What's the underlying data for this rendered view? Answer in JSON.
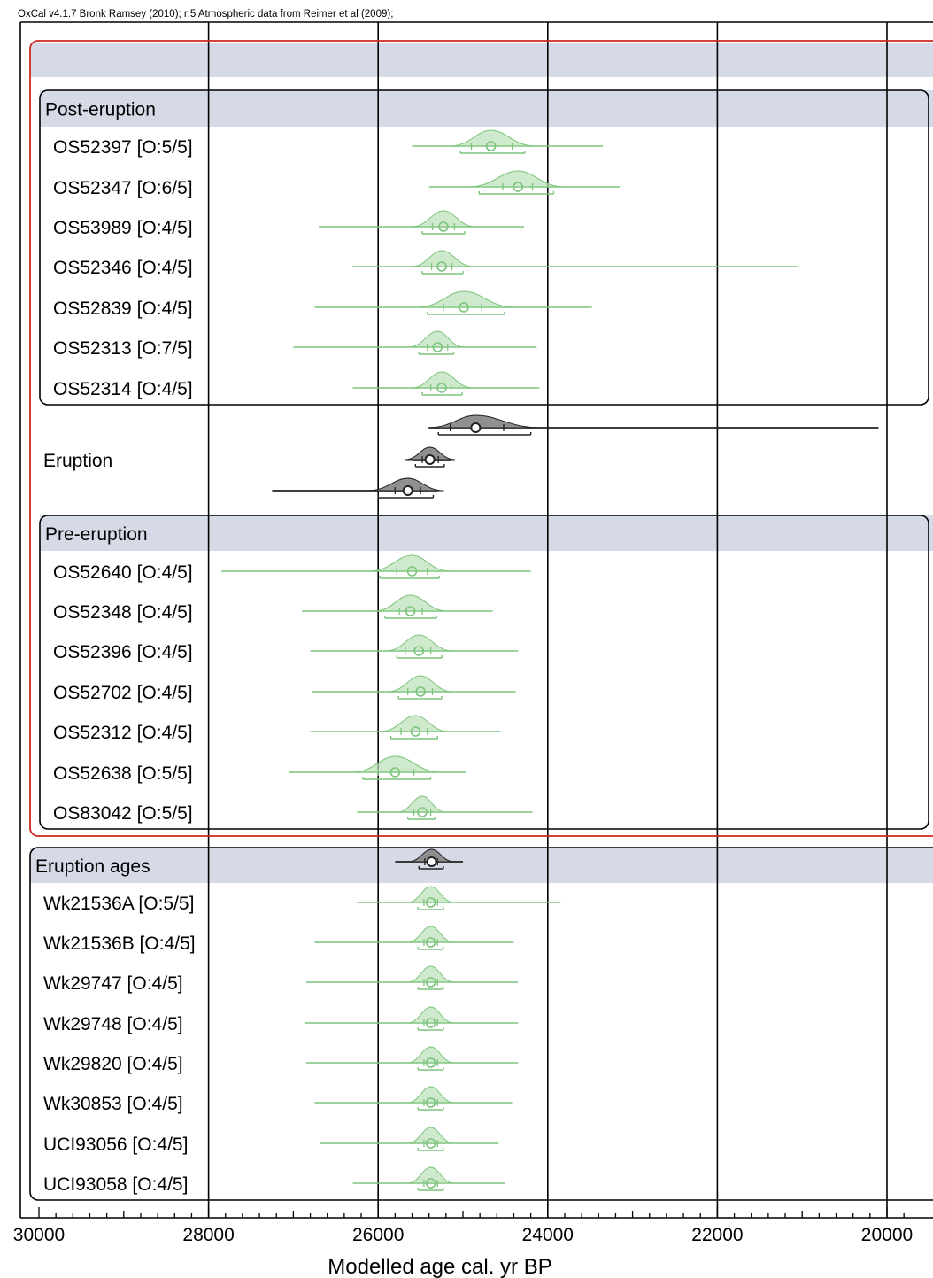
{
  "header": {
    "text": "OxCal v4.1.7 Bronk Ramsey (2010); r:5 Atmospheric data from Reimer et al (2009);"
  },
  "colors": {
    "frame": "#000000",
    "band": "#d6dae7",
    "outer_box": "#d0261f",
    "sample": "#7cc47c",
    "sample_fill": "#b9e0b5",
    "phase_dark": "#222222",
    "phase_fill": "#8a8a8a"
  },
  "chart_data": {
    "type": "scatter",
    "xlabel": "Modelled age cal. yr BP",
    "x_ticks": [
      "30000",
      "28000",
      "26000",
      "24000",
      "22000",
      "20000"
    ],
    "xlim": [
      30000,
      19800
    ],
    "grid": "vertical lines at major ticks",
    "groups": [
      {
        "title": "Post-eruption",
        "items": [
          {
            "label": "OS52397 [O:5/5]",
            "median": 24670,
            "range68": [
              24900,
              24420
            ],
            "range95": [
              25030,
              24270
            ],
            "tails": [
              25600,
              23350
            ]
          },
          {
            "label": "OS52347 [O:6/5]",
            "median": 24350,
            "range68": [
              24530,
              24180
            ],
            "range95": [
              24810,
              23930
            ],
            "tails": [
              25400,
              23150
            ]
          },
          {
            "label": "OS53989 [O:4/5]",
            "median": 25230,
            "range68": [
              25360,
              25100
            ],
            "range95": [
              25480,
              24980
            ],
            "tails": [
              26700,
              24280
            ]
          },
          {
            "label": "OS52346 [O:4/5]",
            "median": 25250,
            "range68": [
              25370,
              25130
            ],
            "range95": [
              25480,
              25000
            ],
            "tails": [
              26300,
              21050
            ]
          },
          {
            "label": "OS52839 [O:4/5]",
            "median": 24990,
            "range68": [
              25230,
              24780
            ],
            "range95": [
              25420,
              24510
            ],
            "tails": [
              26750,
              23480
            ]
          },
          {
            "label": "OS52313 [O:7/5]",
            "median": 25300,
            "range68": [
              25420,
              25180
            ],
            "range95": [
              25520,
              25110
            ],
            "tails": [
              27000,
              24130
            ]
          },
          {
            "label": "OS52314 [O:4/5]",
            "median": 25250,
            "range68": [
              25380,
              25140
            ],
            "range95": [
              25480,
              25010
            ],
            "tails": [
              26300,
              24100
            ]
          }
        ]
      },
      {
        "title": "Eruption",
        "items": [
          {
            "label": "",
            "median": 24850,
            "range68": [
              25150,
              24520
            ],
            "range95": [
              25290,
              24200
            ],
            "tails": [
              25400,
              20100
            ],
            "phase": true
          },
          {
            "label": "",
            "median": 25390,
            "range68": [
              25480,
              25290
            ],
            "range95": [
              25560,
              25220
            ],
            "tails": [
              25600,
              25150
            ],
            "phase": true
          },
          {
            "label": "",
            "median": 25650,
            "range68": [
              25800,
              25500
            ],
            "range95": [
              26000,
              25350
            ],
            "tails": [
              27250,
              25300
            ],
            "phase": true
          }
        ]
      },
      {
        "title": "Pre-eruption",
        "items": [
          {
            "label": "OS52640 [O:4/5]",
            "median": 25600,
            "range68": [
              25780,
              25420
            ],
            "range95": [
              25980,
              25280
            ],
            "tails": [
              27850,
              24200
            ]
          },
          {
            "label": "OS52348 [O:4/5]",
            "median": 25620,
            "range68": [
              25750,
              25480
            ],
            "range95": [
              25920,
              25310
            ],
            "tails": [
              26900,
              24650
            ]
          },
          {
            "label": "OS52396 [O:4/5]",
            "median": 25520,
            "range68": [
              25680,
              25380
            ],
            "range95": [
              25780,
              25250
            ],
            "tails": [
              26800,
              24350
            ]
          },
          {
            "label": "OS52702 [O:4/5]",
            "median": 25500,
            "range68": [
              25650,
              25360
            ],
            "range95": [
              25760,
              25250
            ],
            "tails": [
              26780,
              24380
            ]
          },
          {
            "label": "OS52312 [O:4/5]",
            "median": 25560,
            "range68": [
              25730,
              25420
            ],
            "range95": [
              25850,
              25300
            ],
            "tails": [
              26800,
              24560
            ]
          },
          {
            "label": "OS52638 [O:5/5]",
            "median": 25800,
            "range68": [
              26000,
              25580
            ],
            "range95": [
              26180,
              25380
            ],
            "tails": [
              27050,
              24970
            ]
          },
          {
            "label": "OS83042 [O:5/5]",
            "median": 25480,
            "range68": [
              25580,
              25380
            ],
            "range95": [
              25650,
              25330
            ],
            "tails": [
              26250,
              24180
            ]
          }
        ]
      },
      {
        "title": "Eruption ages",
        "items": [
          {
            "label": "",
            "median": 25370,
            "range68": [
              25450,
              25300
            ],
            "range95": [
              25520,
              25230
            ],
            "tails": [
              25800,
              25000
            ],
            "phase": true
          },
          {
            "label": "Wk21536A [O:5/5]",
            "median": 25380,
            "range68": [
              25460,
              25300
            ],
            "range95": [
              25530,
              25230
            ],
            "tails": [
              26250,
              23850
            ]
          },
          {
            "label": "Wk21536B [O:4/5]",
            "median": 25380,
            "range68": [
              25460,
              25300
            ],
            "range95": [
              25530,
              25230
            ],
            "tails": [
              26750,
              24400
            ]
          },
          {
            "label": "Wk29747 [O:4/5]",
            "median": 25380,
            "range68": [
              25460,
              25300
            ],
            "range95": [
              25530,
              25230
            ],
            "tails": [
              26850,
              24350
            ]
          },
          {
            "label": "Wk29748 [O:4/5]",
            "median": 25380,
            "range68": [
              25460,
              25300
            ],
            "range95": [
              25530,
              25230
            ],
            "tails": [
              26870,
              24350
            ]
          },
          {
            "label": "Wk29820 [O:4/5]",
            "median": 25380,
            "range68": [
              25460,
              25300
            ],
            "range95": [
              25530,
              25230
            ],
            "tails": [
              26850,
              24350
            ]
          },
          {
            "label": "Wk30853 [O:4/5]",
            "median": 25380,
            "range68": [
              25460,
              25300
            ],
            "range95": [
              25530,
              25230
            ],
            "tails": [
              26750,
              24420
            ]
          },
          {
            "label": "UCI93056 [O:4/5]",
            "median": 25380,
            "range68": [
              25460,
              25300
            ],
            "range95": [
              25530,
              25230
            ],
            "tails": [
              26680,
              24580
            ]
          },
          {
            "label": "UCI93058 [O:4/5]",
            "median": 25380,
            "range68": [
              25460,
              25300
            ],
            "range95": [
              25530,
              25230
            ],
            "tails": [
              26300,
              24500
            ]
          }
        ]
      }
    ]
  }
}
